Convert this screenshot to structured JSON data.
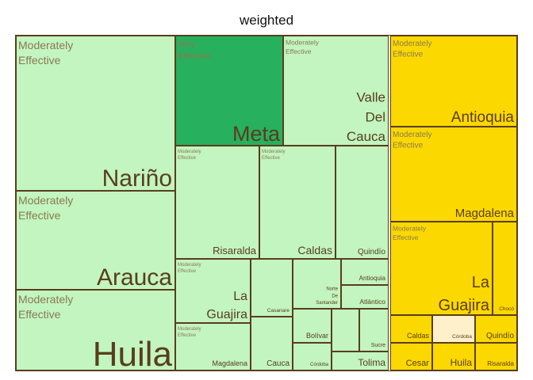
{
  "chart_data": {
    "type": "treemap",
    "title": "weighted",
    "colors": {
      "Moderately Effective": "#c2f5c0",
      "Very Effective": "#27b05e",
      "Yellow Group": "#fbd800",
      "Highlight": "#fff0cc",
      "Border": "#5a3d1c"
    },
    "groups": [
      {
        "name": "green",
        "tiles": [
          {
            "region": "Nariño",
            "category": "Moderately Effective",
            "value": 5.5
          },
          {
            "region": "Arauca",
            "category": "Moderately Effective",
            "value": 3.2
          },
          {
            "region": "Huila",
            "category": "Moderately Effective",
            "value": 2.8
          },
          {
            "region": "Meta",
            "category": "Very Effective",
            "value": 3.5
          },
          {
            "region": "Valle Del Cauca",
            "category": "Moderately Effective",
            "value": 3.0
          },
          {
            "region": "Risaralda",
            "category": "Moderately Effective",
            "value": 2.0
          },
          {
            "region": "Caldas",
            "category": "Moderately Effective",
            "value": 1.9
          },
          {
            "region": "Quindío",
            "category": "",
            "value": 1.2
          },
          {
            "region": "La Guajira",
            "category": "Moderately Effective",
            "value": 1.2
          },
          {
            "region": "Casanare",
            "category": "",
            "value": 0.5
          },
          {
            "region": "Norte De Santander",
            "category": "",
            "value": 0.6
          },
          {
            "region": "Antioquia",
            "category": "",
            "value": 0.3
          },
          {
            "region": "Atlántico",
            "category": "",
            "value": 0.5
          },
          {
            "region": "Magdalena",
            "category": "Moderately Effective",
            "value": 0.9
          },
          {
            "region": "Cauca",
            "category": "",
            "value": 0.5
          },
          {
            "region": "Bolívar",
            "category": "",
            "value": 0.35
          },
          {
            "region": "Sucre",
            "category": "",
            "value": 0.3
          },
          {
            "region": "Córdoba",
            "category": "",
            "value": 0.25
          },
          {
            "region": "Tolima",
            "category": "",
            "value": 0.3
          }
        ]
      },
      {
        "name": "yellow",
        "tiles": [
          {
            "region": "Antioquia",
            "category": "Moderately Effective",
            "value": 1.9
          },
          {
            "region": "Magdalena",
            "category": "Moderately Effective",
            "value": 1.9
          },
          {
            "region": "La Guajira",
            "category": "Moderately Effective",
            "value": 1.9
          },
          {
            "region": "Chocó",
            "category": "",
            "value": 0.4
          },
          {
            "region": "Caldas",
            "category": "",
            "value": 0.4
          },
          {
            "region": "Córdoba",
            "category": "",
            "value": 0.4
          },
          {
            "region": "Quindío",
            "category": "",
            "value": 0.4
          },
          {
            "region": "Cesar",
            "category": "",
            "value": 0.4
          },
          {
            "region": "Huila",
            "category": "",
            "value": 0.4
          },
          {
            "region": "Risaralda",
            "category": "",
            "value": 0.4
          }
        ]
      }
    ]
  }
}
